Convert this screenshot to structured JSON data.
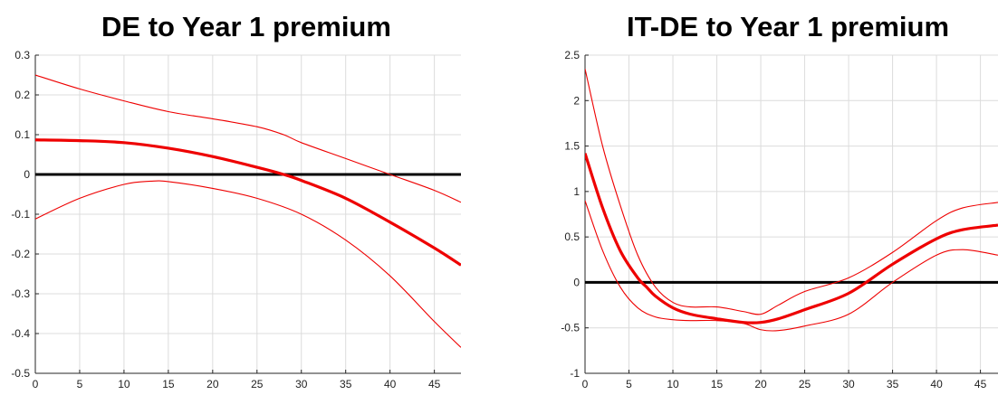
{
  "chart_data": [
    {
      "type": "line",
      "title": "DE to Year 1 premium",
      "xlabel": "",
      "ylabel": "",
      "xlim": [
        0,
        48
      ],
      "ylim": [
        -0.5,
        0.3
      ],
      "xticks": [
        0,
        5,
        10,
        15,
        20,
        25,
        30,
        35,
        40,
        45
      ],
      "yticks": [
        0.3,
        0.2,
        0.1,
        0,
        -0.1,
        -0.2,
        -0.3,
        -0.4,
        -0.5
      ],
      "ytick_labels": [
        "0.3",
        "0.2",
        "0.1",
        "0",
        "-0.1",
        "-0.2",
        "-0.3",
        "-0.4",
        "-0.5"
      ],
      "grid": true,
      "zero_line": 0,
      "series": [
        {
          "role": "upper",
          "color": "#ee0000",
          "x": [
            0,
            5,
            10,
            15,
            20,
            25,
            28,
            30,
            35,
            40,
            45,
            48
          ],
          "y": [
            0.25,
            0.215,
            0.185,
            0.158,
            0.14,
            0.12,
            0.1,
            0.08,
            0.04,
            0.0,
            -0.04,
            -0.07
          ]
        },
        {
          "role": "estimate",
          "color": "#ee0000",
          "x": [
            0,
            5,
            10,
            15,
            20,
            25,
            28,
            30,
            35,
            40,
            45,
            48
          ],
          "y": [
            0.087,
            0.085,
            0.08,
            0.066,
            0.045,
            0.018,
            0.0,
            -0.015,
            -0.06,
            -0.12,
            -0.185,
            -0.228
          ]
        },
        {
          "role": "lower",
          "color": "#ee0000",
          "x": [
            0,
            5,
            10,
            13,
            15,
            20,
            25,
            30,
            35,
            40,
            45,
            48
          ],
          "y": [
            -0.112,
            -0.06,
            -0.025,
            -0.017,
            -0.018,
            -0.035,
            -0.06,
            -0.1,
            -0.165,
            -0.255,
            -0.37,
            -0.435
          ]
        }
      ]
    },
    {
      "type": "line",
      "title": "IT-DE to Year 1 premium",
      "xlabel": "",
      "ylabel": "",
      "xlim": [
        0,
        47
      ],
      "ylim": [
        -1,
        2.5
      ],
      "xticks": [
        0,
        5,
        10,
        15,
        20,
        25,
        30,
        35,
        40,
        45
      ],
      "yticks": [
        2.5,
        2,
        1.5,
        1,
        0.5,
        0,
        -0.5,
        -1
      ],
      "ytick_labels": [
        "2.5",
        "2",
        "1.5",
        "1",
        "0.5",
        "0",
        "-0.5",
        "-1"
      ],
      "grid": true,
      "zero_line": 0,
      "series": [
        {
          "role": "upper",
          "color": "#ee0000",
          "x": [
            0,
            2,
            4,
            6,
            8,
            10,
            12,
            15,
            18,
            20,
            22,
            25,
            30,
            35,
            40,
            43,
            47
          ],
          "y": [
            2.35,
            1.5,
            0.85,
            0.3,
            -0.05,
            -0.22,
            -0.27,
            -0.27,
            -0.32,
            -0.35,
            -0.25,
            -0.1,
            0.05,
            0.33,
            0.68,
            0.82,
            0.88
          ]
        },
        {
          "role": "estimate",
          "color": "#ee0000",
          "x": [
            0,
            2,
            4,
            6,
            7,
            8,
            10,
            12,
            15,
            18,
            20,
            22,
            25,
            30,
            35,
            40,
            43,
            47
          ],
          "y": [
            1.42,
            0.82,
            0.35,
            0.05,
            -0.05,
            -0.15,
            -0.28,
            -0.35,
            -0.4,
            -0.44,
            -0.44,
            -0.4,
            -0.3,
            -0.12,
            0.2,
            0.48,
            0.58,
            0.63
          ]
        },
        {
          "role": "lower",
          "color": "#ee0000",
          "x": [
            0,
            2,
            4,
            6,
            8,
            10,
            12,
            15,
            18,
            20,
            22,
            25,
            30,
            35,
            40,
            43,
            47
          ],
          "y": [
            0.9,
            0.35,
            -0.05,
            -0.28,
            -0.38,
            -0.41,
            -0.42,
            -0.42,
            -0.45,
            -0.52,
            -0.53,
            -0.48,
            -0.35,
            0.0,
            0.3,
            0.36,
            0.3
          ]
        }
      ]
    }
  ]
}
